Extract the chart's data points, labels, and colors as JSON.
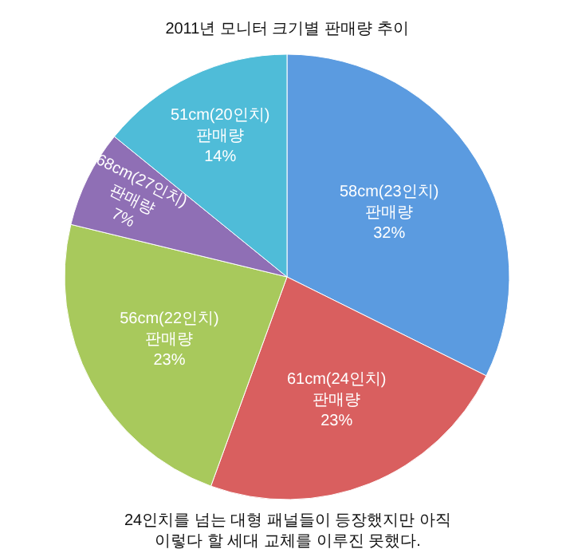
{
  "chart_data": {
    "type": "pie",
    "title": "2011년 모니터 크기별 판매량 추이",
    "categories": [
      "58cm(23인치) 판매량",
      "61cm(24인치) 판매량",
      "56cm(22인치) 판매량",
      "68cm(27인치) 판매량",
      "51cm(20인치) 판매량"
    ],
    "values": [
      32,
      23,
      23,
      7,
      14
    ],
    "value_labels": [
      "32%",
      "23%",
      "23%",
      "7%",
      "14%"
    ],
    "colors": [
      "#5b9be0",
      "#d95f5f",
      "#a8c95c",
      "#8f6fb5",
      "#4fbcd8"
    ],
    "annotations": [
      "24인치를 넘는 대형 패널들이 등장했지만 아직 이렇다 할 세대 교체를 이루진 못했다."
    ],
    "legend": false
  }
}
